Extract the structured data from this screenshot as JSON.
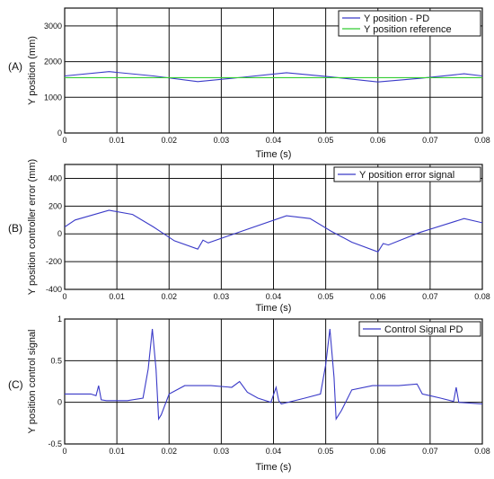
{
  "chart_data": [
    {
      "type": "line",
      "panel_label": "(A)",
      "xlabel": "Time (s)",
      "ylabel": "Y position (mm)",
      "xlim": [
        0,
        0.08
      ],
      "ylim": [
        0,
        3500
      ],
      "x_ticks": [
        0,
        0.01,
        0.02,
        0.03,
        0.04,
        0.05,
        0.06,
        0.07,
        0.08
      ],
      "x_tick_labels": [
        "0",
        "0.01",
        "0.02",
        "0.03",
        "0.04",
        "0.05",
        "0.06",
        "0.07",
        "0.08"
      ],
      "y_ticks": [
        0,
        1000,
        2000,
        3000
      ],
      "y_tick_labels": [
        "0",
        "1000",
        "2000",
        "3000"
      ],
      "grid": true,
      "legend_position": "top-right",
      "series": [
        {
          "name": "Y position - PD",
          "color": "#3a3ac8",
          "x": [
            0,
            0.0085,
            0.017,
            0.0255,
            0.034,
            0.0425,
            0.051,
            0.06,
            0.068,
            0.0765,
            0.08
          ],
          "y": [
            1600,
            1720,
            1600,
            1440,
            1560,
            1690,
            1570,
            1430,
            1530,
            1660,
            1600
          ]
        },
        {
          "name": "Y position reference",
          "color": "#33cc33",
          "x": [
            0,
            0.08
          ],
          "y": [
            1550,
            1550
          ]
        }
      ]
    },
    {
      "type": "line",
      "panel_label": "(B)",
      "xlabel": "Time (s)",
      "ylabel": "Y position controller error (mm)",
      "xlim": [
        0,
        0.08
      ],
      "ylim": [
        -400,
        500
      ],
      "x_ticks": [
        0,
        0.01,
        0.02,
        0.03,
        0.04,
        0.05,
        0.06,
        0.07,
        0.08
      ],
      "x_tick_labels": [
        "0",
        "0.01",
        "0.02",
        "0.03",
        "0.04",
        "0.05",
        "0.06",
        "0.07",
        "0.08"
      ],
      "y_ticks": [
        -400,
        -200,
        0,
        200,
        400
      ],
      "y_tick_labels": [
        "-400",
        "-200",
        "0",
        "200",
        "400"
      ],
      "grid": true,
      "legend_position": "top-right",
      "series": [
        {
          "name": "Y position error signal",
          "color": "#3a3ac8",
          "x": [
            0,
            0.002,
            0.0085,
            0.013,
            0.017,
            0.021,
            0.0255,
            0.0265,
            0.0275,
            0.034,
            0.0425,
            0.047,
            0.051,
            0.055,
            0.06,
            0.061,
            0.062,
            0.068,
            0.0765,
            0.08
          ],
          "y": [
            50,
            100,
            170,
            140,
            50,
            -50,
            -110,
            -45,
            -65,
            20,
            130,
            110,
            20,
            -60,
            -130,
            -70,
            -80,
            10,
            110,
            80
          ]
        }
      ]
    },
    {
      "type": "line",
      "panel_label": "(C)",
      "xlabel": "Time (s)",
      "ylabel": "Y position control signal",
      "xlim": [
        0,
        0.08
      ],
      "ylim": [
        -0.5,
        1
      ],
      "x_ticks": [
        0,
        0.01,
        0.02,
        0.03,
        0.04,
        0.05,
        0.06,
        0.07,
        0.08
      ],
      "x_tick_labels": [
        "0",
        "0.01",
        "0.02",
        "0.03",
        "0.04",
        "0.05",
        "0.06",
        "0.07",
        "0.08"
      ],
      "y_ticks": [
        -0.5,
        0,
        0.5,
        1
      ],
      "y_tick_labels": [
        "-0.5",
        "0",
        "0.5",
        "1"
      ],
      "grid": true,
      "legend_position": "top-right",
      "series": [
        {
          "name": "Control Signal PD",
          "color": "#3a3ac8",
          "x": [
            0,
            0.005,
            0.006,
            0.0065,
            0.007,
            0.008,
            0.012,
            0.015,
            0.016,
            0.0168,
            0.0175,
            0.018,
            0.0185,
            0.02,
            0.023,
            0.028,
            0.032,
            0.0335,
            0.035,
            0.037,
            0.0395,
            0.0405,
            0.041,
            0.0415,
            0.046,
            0.049,
            0.05,
            0.0508,
            0.0516,
            0.052,
            0.053,
            0.055,
            0.059,
            0.064,
            0.0675,
            0.0685,
            0.07,
            0.072,
            0.0745,
            0.075,
            0.0755,
            0.08
          ],
          "y": [
            0.1,
            0.1,
            0.08,
            0.2,
            0.03,
            0.02,
            0.02,
            0.05,
            0.4,
            0.88,
            0.4,
            -0.2,
            -0.15,
            0.1,
            0.2,
            0.2,
            0.18,
            0.25,
            0.12,
            0.05,
            0.0,
            0.18,
            0.02,
            -0.02,
            0.05,
            0.1,
            0.45,
            0.88,
            0.3,
            -0.2,
            -0.1,
            0.15,
            0.2,
            0.2,
            0.22,
            0.1,
            0.08,
            0.05,
            0.01,
            0.18,
            0.0,
            -0.02
          ]
        }
      ]
    }
  ]
}
